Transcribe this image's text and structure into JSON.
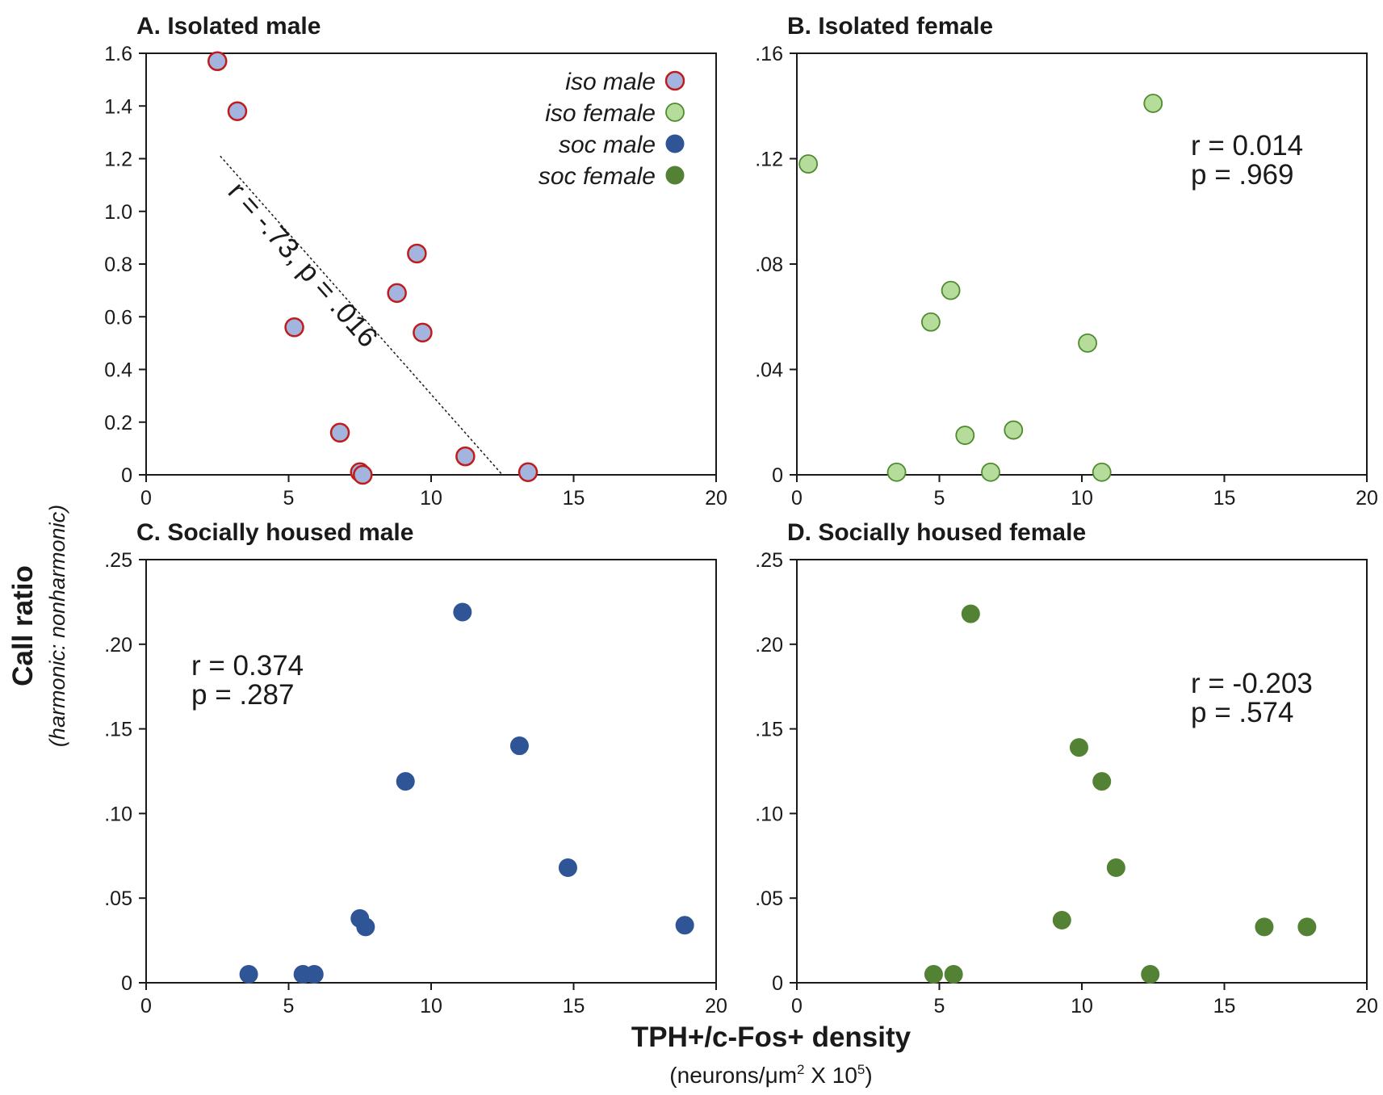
{
  "colors": {
    "iso_male_fill": "#a3b4df",
    "iso_male_edge": "#c01c1c",
    "iso_female_fill": "#b5dc9a",
    "iso_female_edge": "#4e8a2e",
    "soc_male": "#2f5597",
    "soc_female": "#548235",
    "axis": "#1a1a1a"
  },
  "axes": {
    "y_title": "Call ratio",
    "y_subtitle": "(harmonic: nonharmonic)",
    "x_title": "TPH+/c-Fos+ density",
    "x_subtitle_prefix": "(neurons/μm",
    "x_subtitle_sup1": "2",
    "x_subtitle_mid": " X 10",
    "x_subtitle_sup2": "5",
    "x_subtitle_suffix": ")"
  },
  "legend": [
    {
      "label": "iso male",
      "series": "iso_male"
    },
    {
      "label": "iso female",
      "series": "iso_female"
    },
    {
      "label": "soc male",
      "series": "soc_male"
    },
    {
      "label": "soc female",
      "series": "soc_female"
    }
  ],
  "chart_data": [
    {
      "id": "A",
      "type": "scatter",
      "title": "A. Isolated male",
      "series": "iso_male",
      "xlim": [
        0,
        20
      ],
      "ylim": [
        0,
        1.6
      ],
      "xticks": [
        0,
        5,
        10,
        15,
        20
      ],
      "xtick_labels": [
        "0",
        "5",
        "10",
        "15",
        "20"
      ],
      "yticks": [
        0,
        0.2,
        0.4,
        0.6,
        0.8,
        1.0,
        1.2,
        1.4,
        1.6
      ],
      "ytick_labels": [
        "0",
        "0.2",
        "0.4",
        "0.6",
        "0.8",
        "1.0",
        "1.2",
        "1.4",
        "1.6"
      ],
      "x": [
        2.5,
        3.2,
        5.2,
        6.8,
        7.5,
        7.6,
        8.8,
        9.5,
        9.7,
        11.2,
        13.4
      ],
      "y": [
        1.57,
        1.38,
        0.56,
        0.16,
        0.01,
        0.0,
        0.69,
        0.84,
        0.54,
        0.07,
        0.01
      ],
      "fit_line": {
        "x": [
          2.6,
          12.5
        ],
        "y": [
          1.21,
          0.0
        ]
      },
      "annotation": "r = -.73, p = .016"
    },
    {
      "id": "B",
      "type": "scatter",
      "title": "B. Isolated female",
      "series": "iso_female",
      "xlim": [
        0,
        20
      ],
      "ylim": [
        0,
        0.16
      ],
      "xticks": [
        0,
        5,
        10,
        15,
        20
      ],
      "xtick_labels": [
        "0",
        "5",
        "10",
        "15",
        "20"
      ],
      "yticks": [
        0,
        0.04,
        0.08,
        0.12,
        0.16
      ],
      "ytick_labels": [
        "0",
        ".04",
        ".08",
        ".12",
        ".16"
      ],
      "x": [
        0.4,
        3.5,
        4.7,
        5.4,
        5.9,
        6.8,
        7.6,
        10.2,
        10.7,
        12.5
      ],
      "y": [
        0.118,
        0.001,
        0.058,
        0.07,
        0.015,
        0.001,
        0.017,
        0.05,
        0.001,
        0.141
      ],
      "stats": [
        "r = 0.014",
        "p = .969"
      ]
    },
    {
      "id": "C",
      "type": "scatter",
      "title": "C. Socially housed male",
      "series": "soc_male",
      "xlim": [
        0,
        20
      ],
      "ylim": [
        0,
        0.25
      ],
      "xticks": [
        0,
        5,
        10,
        15,
        20
      ],
      "xtick_labels": [
        "0",
        "5",
        "10",
        "15",
        "20"
      ],
      "yticks": [
        0,
        0.05,
        0.1,
        0.15,
        0.2,
        0.25
      ],
      "ytick_labels": [
        "0",
        ".05",
        ".10",
        ".15",
        ".20",
        ".25"
      ],
      "x": [
        3.6,
        5.5,
        5.9,
        7.5,
        7.7,
        9.1,
        11.1,
        13.1,
        14.8,
        18.9
      ],
      "y": [
        0.005,
        0.005,
        0.005,
        0.038,
        0.033,
        0.119,
        0.219,
        0.14,
        0.068,
        0.034
      ],
      "stats": [
        "r = 0.374",
        "p = .287"
      ]
    },
    {
      "id": "D",
      "type": "scatter",
      "title": "D. Socially housed female",
      "series": "soc_female",
      "xlim": [
        0,
        20
      ],
      "ylim": [
        0,
        0.25
      ],
      "xticks": [
        0,
        5,
        10,
        15,
        20
      ],
      "xtick_labels": [
        "0",
        "5",
        "10",
        "15",
        "20"
      ],
      "yticks": [
        0,
        0.05,
        0.1,
        0.15,
        0.2,
        0.25
      ],
      "ytick_labels": [
        "0",
        ".05",
        ".10",
        ".15",
        ".20",
        ".25"
      ],
      "x": [
        4.8,
        5.5,
        6.1,
        9.3,
        9.9,
        10.7,
        11.2,
        12.4,
        16.4,
        17.9
      ],
      "y": [
        0.005,
        0.005,
        0.218,
        0.037,
        0.139,
        0.119,
        0.068,
        0.005,
        0.033,
        0.033
      ],
      "stats": [
        "r = -0.203",
        "p = .574"
      ]
    }
  ]
}
